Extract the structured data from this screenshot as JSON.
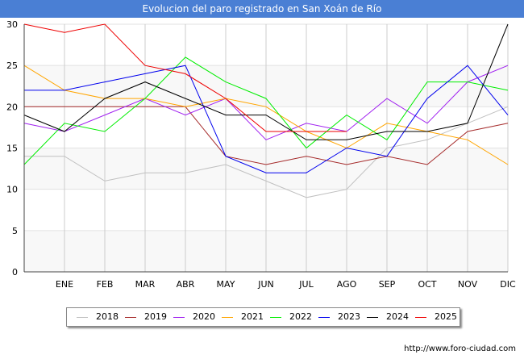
{
  "title": "Evolucion del paro registrado en San Xoán de Río",
  "source": "http://www.foro-ciudad.com",
  "chart_data": {
    "type": "line",
    "title": "Evolucion del paro registrado en San Xoán de Río",
    "categories": [
      "",
      "ENE",
      "FEB",
      "MAR",
      "ABR",
      "MAY",
      "JUN",
      "JUL",
      "AGO",
      "SEP",
      "OCT",
      "NOV",
      "DIC"
    ],
    "ylim": [
      0,
      30
    ],
    "yticks": [
      0,
      5,
      10,
      15,
      20,
      25,
      30
    ],
    "grid": true,
    "legend_position": "bottom",
    "series": [
      {
        "name": "2018",
        "color": "#c0c0c0",
        "values": [
          14,
          14,
          11,
          12,
          12,
          13,
          11,
          9,
          10,
          15,
          16,
          18,
          20
        ]
      },
      {
        "name": "2019",
        "color": "#a52a2a",
        "values": [
          20,
          20,
          20,
          20,
          20,
          14,
          13,
          14,
          13,
          14,
          13,
          17,
          18
        ]
      },
      {
        "name": "2020",
        "color": "#a020f0",
        "values": [
          18,
          17,
          19,
          21,
          19,
          21,
          16,
          18,
          17,
          21,
          18,
          23,
          25
        ]
      },
      {
        "name": "2021",
        "color": "#ffa500",
        "values": [
          25,
          22,
          21,
          21,
          20,
          21,
          20,
          17,
          15,
          18,
          17,
          16,
          13
        ]
      },
      {
        "name": "2022",
        "color": "#00ee00",
        "values": [
          13,
          18,
          17,
          21,
          26,
          23,
          21,
          15,
          19,
          16,
          23,
          23,
          22
        ]
      },
      {
        "name": "2023",
        "color": "#0000ee",
        "values": [
          22,
          22,
          23,
          24,
          25,
          14,
          12,
          12,
          15,
          14,
          21,
          25,
          19
        ]
      },
      {
        "name": "2024",
        "color": "#000000",
        "values": [
          19,
          17,
          21,
          23,
          21,
          19,
          19,
          16,
          16,
          17,
          17,
          18,
          30
        ]
      },
      {
        "name": "2025",
        "color": "#ee0000",
        "values": [
          30,
          29,
          30,
          25,
          24,
          21,
          17,
          17,
          17,
          null,
          null,
          null,
          null
        ]
      }
    ]
  }
}
